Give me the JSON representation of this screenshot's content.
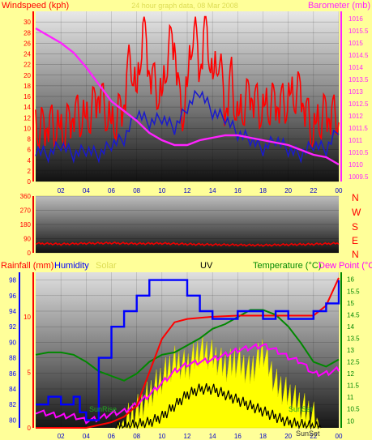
{
  "colors": {
    "page_bg": "#ffff99",
    "wind": "#ff0000",
    "gust_line": "#1a1acc",
    "baro": "#ff22ff",
    "winddir": "#ee0000",
    "rain": "#ff0000",
    "humidity": "#0000ff",
    "solar": "#ffff00",
    "uv": "#000000",
    "temperature": "#008800",
    "dewpoint": "#ff00ff",
    "axis_blue": "#0000ff"
  },
  "chart_data": [
    {
      "id": "wind_baro",
      "type": "line",
      "title": "24 hour graph data, 08 Mar 2008",
      "left_axis_label": "Windspeed (kph)",
      "right_axis_label": "Barometer (mb)",
      "left_ticks": [
        "0",
        "2",
        "4",
        "6",
        "8",
        "10",
        "12",
        "14",
        "16",
        "18",
        "20",
        "22",
        "24",
        "26",
        "28",
        "30"
      ],
      "left_ylim": [
        0,
        32
      ],
      "right_ticks": [
        "1009.5",
        "1010",
        "1010.5",
        "1011",
        "1011.5",
        "1012",
        "1012.5",
        "1013",
        "1013.5",
        "1014",
        "1014.5",
        "1015",
        "1015.5",
        "1016"
      ],
      "right_ylim": [
        1009.3,
        1016.3
      ],
      "x_ticks": [
        "02",
        "04",
        "06",
        "08",
        "10",
        "12",
        "14",
        "16",
        "18",
        "20",
        "22",
        "00"
      ],
      "series": [
        {
          "name": "Windspeed",
          "color_key": "wind",
          "x": [
            0,
            1,
            2,
            3,
            4,
            5,
            6,
            7,
            7.5,
            8,
            8.5,
            9,
            9.5,
            10,
            10.5,
            11,
            11.5,
            12,
            12.5,
            13,
            13.5,
            14,
            14.5,
            15,
            15.5,
            16,
            17,
            18,
            19,
            20,
            21,
            22,
            23,
            24
          ],
          "y": [
            9,
            12,
            8,
            14,
            10,
            18,
            9,
            16,
            24,
            14,
            30,
            22,
            18,
            14,
            25,
            28,
            12,
            16,
            30,
            22,
            31,
            17,
            24,
            14,
            20,
            10,
            18,
            12,
            16,
            14,
            18,
            8,
            14,
            12
          ]
        },
        {
          "name": "Average",
          "color_key": "gust_line",
          "x": [
            0,
            1,
            2,
            3,
            4,
            5,
            6,
            7,
            8,
            9,
            10,
            11,
            12,
            13,
            14,
            15,
            16,
            17,
            18,
            19,
            20,
            21,
            22,
            23,
            24
          ],
          "y": [
            6,
            5,
            7,
            5,
            6,
            5,
            7,
            8,
            13,
            11,
            12,
            10,
            14,
            17,
            13,
            12,
            9,
            8,
            6,
            8,
            6,
            5,
            7,
            6,
            10
          ]
        },
        {
          "name": "Barometer",
          "color_key": "baro",
          "x": [
            0,
            1,
            2,
            3,
            4,
            5,
            6,
            7,
            8,
            9,
            10,
            11,
            12,
            13,
            14,
            15,
            16,
            17,
            18,
            19,
            20,
            21,
            22,
            23,
            24
          ],
          "y": [
            1015.6,
            1015.3,
            1015.0,
            1014.6,
            1014.0,
            1013.3,
            1012.6,
            1012.2,
            1011.8,
            1011.3,
            1011.0,
            1010.8,
            1010.8,
            1011.0,
            1011.1,
            1011.2,
            1011.2,
            1011.1,
            1011.0,
            1010.9,
            1010.8,
            1010.6,
            1010.4,
            1010.3,
            1010.0
          ]
        }
      ]
    },
    {
      "id": "wind_dir",
      "type": "line",
      "left_ticks": [
        "0",
        "90",
        "180",
        "270",
        "360"
      ],
      "ylim": [
        0,
        360
      ],
      "compass": [
        "N",
        "W",
        "S",
        "E",
        "N"
      ],
      "series": [
        {
          "name": "Direction",
          "color_key": "winddir",
          "x": [
            0,
            2,
            4,
            6,
            8,
            10,
            12,
            14,
            16,
            18,
            20,
            22,
            24
          ],
          "y": [
            60,
            55,
            60,
            62,
            58,
            60,
            55,
            52,
            50,
            48,
            52,
            55,
            60
          ]
        }
      ]
    },
    {
      "id": "rain_hum_solar_uv_temp",
      "type": "line",
      "legend": [
        "Rainfall (mm)",
        "Humidity",
        "Solar",
        "UV",
        "Temperature (°C)",
        "Dew Point (°C)"
      ],
      "rain_ticks": [
        "0",
        "5",
        "10"
      ],
      "rain_ylim": [
        0,
        14
      ],
      "humidity_ticks": [
        "80",
        "82",
        "84",
        "86",
        "88",
        "90",
        "92",
        "94",
        "96",
        "98"
      ],
      "humidity_ylim": [
        79,
        99
      ],
      "temp_ticks": [
        "10",
        "10.5",
        "11",
        "11.5",
        "12",
        "12.5",
        "13",
        "13.5",
        "14",
        "14.5",
        "15",
        "15.5",
        "16"
      ],
      "temp_ylim": [
        9.7,
        16.3
      ],
      "x_ticks": [
        "02",
        "04",
        "06",
        "08",
        "10",
        "12",
        "14",
        "16",
        "18",
        "20",
        "22",
        "00"
      ],
      "markers": [
        {
          "label": "SunRise",
          "x": 6.3
        },
        {
          "label": "SunSet",
          "x": 18.2
        },
        {
          "label": "SunSet",
          "x": 22.6
        }
      ],
      "series": [
        {
          "name": "Humidity",
          "color_key": "humidity",
          "x": [
            0,
            1,
            2,
            3,
            3.5,
            4,
            5,
            6,
            7,
            8,
            9,
            10,
            11,
            12,
            13,
            14,
            15,
            16,
            17,
            18,
            19,
            20,
            21,
            22,
            23,
            24
          ],
          "y": [
            82,
            83,
            82,
            83,
            81,
            80,
            88,
            92,
            94,
            96,
            98,
            98,
            98,
            96,
            94,
            93,
            93,
            94,
            94,
            93,
            94,
            93,
            93,
            94,
            95,
            98
          ]
        },
        {
          "name": "Temperature",
          "color_key": "temperature",
          "x": [
            0,
            1,
            2,
            3,
            4,
            5,
            6,
            7,
            8,
            9,
            10,
            11,
            12,
            13,
            14,
            15,
            16,
            17,
            18,
            19,
            20,
            21,
            22,
            23,
            24
          ],
          "y": [
            12.8,
            12.9,
            12.9,
            12.8,
            12.5,
            12.1,
            11.9,
            11.7,
            12.0,
            12.5,
            12.8,
            12.9,
            13.2,
            13.5,
            13.9,
            14.1,
            14.4,
            14.7,
            14.7,
            14.5,
            14.0,
            13.3,
            12.5,
            12.3,
            12.6
          ]
        },
        {
          "name": "Dew Point",
          "color_key": "dewpoint",
          "x": [
            0,
            1,
            2,
            3,
            4,
            5,
            6,
            7,
            8,
            9,
            10,
            11,
            12,
            13,
            14,
            15,
            16,
            17,
            18,
            19,
            20,
            21,
            22,
            23,
            24
          ],
          "y": [
            10.4,
            10.3,
            10.2,
            10.2,
            10.0,
            10.1,
            10.3,
            10.4,
            10.7,
            11.1,
            11.6,
            12.1,
            12.4,
            12.5,
            12.6,
            12.8,
            13.0,
            13.1,
            13.2,
            13.0,
            12.7,
            12.5,
            12.0,
            12.0,
            12.2
          ]
        },
        {
          "name": "Rainfall",
          "color_key": "rain",
          "x": [
            0,
            4,
            6,
            7,
            8,
            9,
            10,
            11,
            12,
            14,
            16,
            18,
            20,
            22,
            23,
            24
          ],
          "y": [
            0,
            0,
            0.5,
            1,
            2,
            5,
            8,
            9.5,
            9.8,
            10,
            10.1,
            10.1,
            10.1,
            10.1,
            11,
            13.5
          ]
        },
        {
          "name": "Solar",
          "color_key": "solar",
          "x": [
            6.3,
            7,
            8,
            9,
            10,
            11,
            12,
            13,
            14,
            15,
            16,
            17,
            18,
            19,
            20,
            21,
            22,
            22.6
          ],
          "y": [
            0,
            0.5,
            1.5,
            3,
            4.5,
            6,
            5.5,
            7,
            6.5,
            5.5,
            6,
            5,
            7,
            4,
            3,
            2,
            1,
            0
          ]
        },
        {
          "name": "UV",
          "color_key": "uv",
          "x": [
            6.3,
            8,
            9,
            10,
            11,
            12,
            13,
            14,
            15,
            16,
            17,
            18,
            19,
            20,
            22.6
          ],
          "y": [
            0,
            0.3,
            0.5,
            1,
            2,
            3,
            3.5,
            3.5,
            3,
            2.5,
            2,
            1.5,
            1,
            0.5,
            0
          ]
        }
      ]
    }
  ]
}
